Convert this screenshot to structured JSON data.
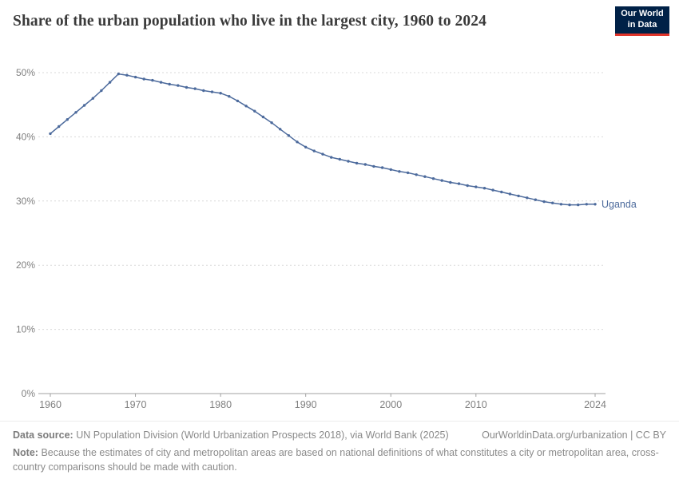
{
  "header": {
    "title": "Share of the urban population who live in the largest city, 1960 to 2024",
    "logo": {
      "line1": "Our World",
      "line2": "in Data"
    }
  },
  "chart_data": {
    "type": "line",
    "title": "Share of the urban population who live in the largest city, 1960 to 2024",
    "xlabel": "",
    "ylabel": "",
    "x_start": 1960,
    "x_end": 2024,
    "x_ticks": [
      1960,
      1970,
      1980,
      1990,
      2000,
      2010,
      2024
    ],
    "y_ticks": [
      0,
      10,
      20,
      30,
      40,
      50
    ],
    "y_tick_suffix": "%",
    "ylim": [
      0,
      50
    ],
    "grid": true,
    "legend_position": "end-of-line",
    "series": [
      {
        "name": "Uganda",
        "color": "#4C6A9C",
        "values": [
          40.5,
          41.6,
          42.7,
          43.8,
          44.9,
          46.0,
          47.2,
          48.5,
          49.8,
          49.6,
          49.3,
          49.0,
          48.8,
          48.5,
          48.2,
          48.0,
          47.7,
          47.5,
          47.2,
          47.0,
          46.8,
          46.3,
          45.6,
          44.8,
          44.0,
          43.1,
          42.2,
          41.2,
          40.2,
          39.2,
          38.4,
          37.8,
          37.3,
          36.8,
          36.5,
          36.2,
          35.9,
          35.7,
          35.4,
          35.2,
          34.9,
          34.6,
          34.4,
          34.1,
          33.8,
          33.5,
          33.2,
          32.9,
          32.7,
          32.4,
          32.2,
          32.0,
          31.7,
          31.4,
          31.1,
          30.8,
          30.5,
          30.2,
          29.9,
          29.7,
          29.5,
          29.4,
          29.4,
          29.5,
          29.5
        ]
      }
    ]
  },
  "footer": {
    "source_label": "Data source:",
    "source_text": "UN Population Division (World Urbanization Prospects 2018), via World Bank (2025)",
    "link_text": "OurWorldinData.org/urbanization | CC BY",
    "note_label": "Note:",
    "note_text": "Because the estimates of city and metropolitan areas are based on national definitions of what constitutes a city or metropolitan area, cross-country comparisons should be made with caution."
  },
  "colors": {
    "line": "#4C6A9C",
    "logo_bg": "#002147",
    "logo_accent": "#E0352B",
    "grid": "#d9d9d9",
    "axis": "#a1a1a1",
    "tick_text": "#808080",
    "title_text": "#3a3a3a"
  }
}
